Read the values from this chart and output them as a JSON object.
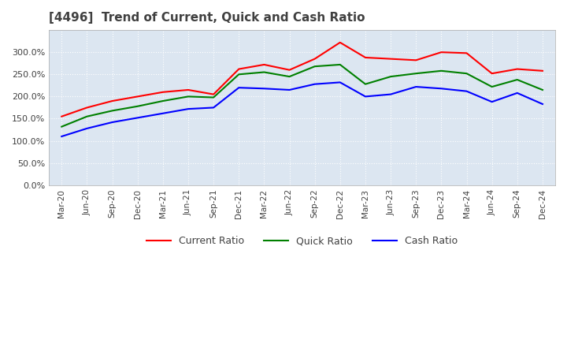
{
  "title": "[4496]  Trend of Current, Quick and Cash Ratio",
  "x_labels": [
    "Mar-20",
    "Jun-20",
    "Sep-20",
    "Dec-20",
    "Mar-21",
    "Jun-21",
    "Sep-21",
    "Dec-21",
    "Mar-22",
    "Jun-22",
    "Sep-22",
    "Dec-22",
    "Mar-23",
    "Jun-23",
    "Sep-23",
    "Dec-23",
    "Mar-24",
    "Jun-24",
    "Sep-24",
    "Dec-24"
  ],
  "current_ratio": [
    1.55,
    1.75,
    1.9,
    2.0,
    2.1,
    2.15,
    2.05,
    2.62,
    2.72,
    2.6,
    2.85,
    3.22,
    2.88,
    2.85,
    2.82,
    3.0,
    2.98,
    2.52,
    2.62,
    2.58
  ],
  "quick_ratio": [
    1.32,
    1.55,
    1.68,
    1.78,
    1.9,
    2.0,
    1.98,
    2.5,
    2.55,
    2.45,
    2.68,
    2.72,
    2.28,
    2.45,
    2.52,
    2.58,
    2.52,
    2.22,
    2.38,
    2.15
  ],
  "cash_ratio": [
    1.1,
    1.28,
    1.42,
    1.52,
    1.62,
    1.72,
    1.75,
    2.2,
    2.18,
    2.15,
    2.28,
    2.32,
    2.0,
    2.05,
    2.22,
    2.18,
    2.12,
    1.88,
    2.08,
    1.83
  ],
  "current_color": "#FF0000",
  "quick_color": "#008000",
  "cash_color": "#0000FF",
  "ylim": [
    0.0,
    3.5
  ],
  "yticks": [
    0.0,
    0.5,
    1.0,
    1.5,
    2.0,
    2.5,
    3.0
  ],
  "plot_bg_color": "#dce6f1",
  "background_color": "#ffffff",
  "grid_color": "#ffffff",
  "title_color": "#404040",
  "line_width": 1.5
}
